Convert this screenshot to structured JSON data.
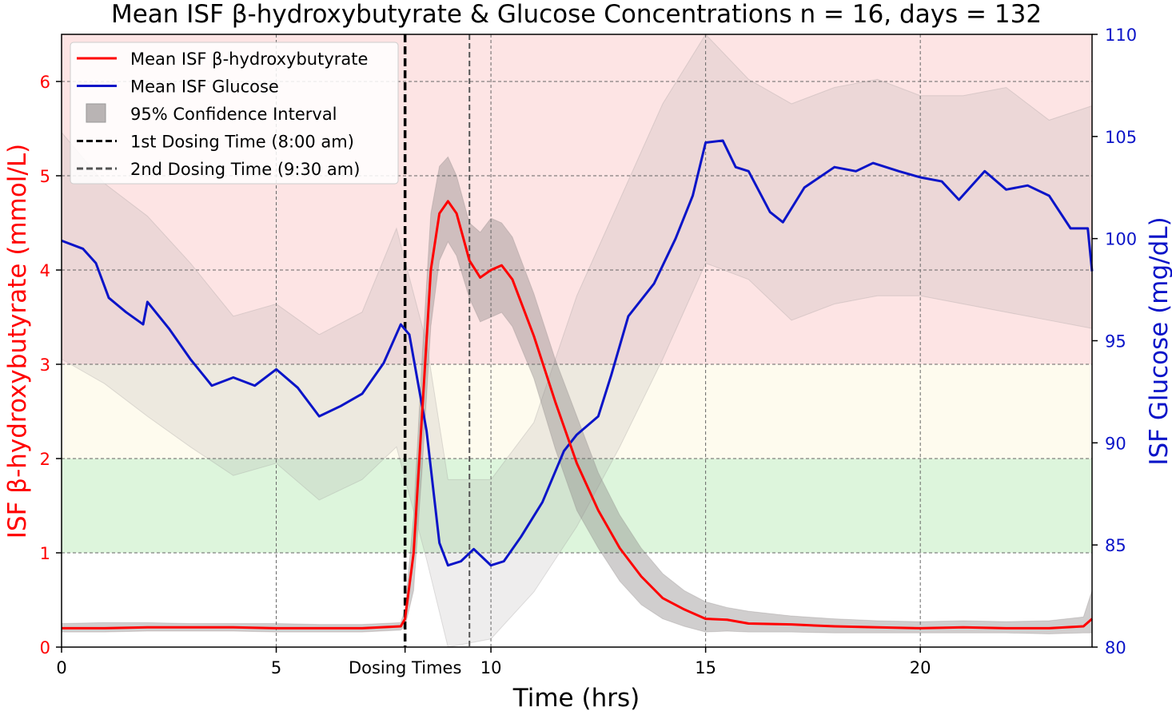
{
  "chart_data": {
    "type": "line",
    "title": "Mean ISF β-hydroxybutyrate & Glucose Concentrations n = 16, days = 132",
    "xlabel": "Time (hrs)",
    "ylabel_left": "ISF β-hydroxybutyrate (mmol/L)",
    "ylabel_right": "ISF Glucose (mg/dL)",
    "xlim": [
      0,
      24
    ],
    "ylim_left": [
      0,
      6.5
    ],
    "ylim_right": [
      80,
      110
    ],
    "x_ticks": [
      0,
      5,
      10,
      15,
      20
    ],
    "x_tick_labels": [
      "0",
      "5",
      "10",
      "15",
      "20"
    ],
    "extra_x_tick": {
      "x": 8,
      "label": "Dosing Times"
    },
    "y_left_ticks": [
      0,
      1,
      2,
      3,
      4,
      5,
      6
    ],
    "y_left_tick_labels": [
      "0",
      "1",
      "2",
      "3",
      "4",
      "5",
      "6"
    ],
    "y_right_ticks": [
      80,
      85,
      90,
      95,
      100,
      105,
      110
    ],
    "y_right_tick_labels": [
      "80",
      "85",
      "90",
      "95",
      "100",
      "105",
      "110"
    ],
    "grid": true,
    "legend_position": "top-left",
    "bands": [
      {
        "from": 3,
        "to": 6.5,
        "color": "#fde4e4"
      },
      {
        "from": 2,
        "to": 3,
        "color": "#fefbee"
      },
      {
        "from": 1,
        "to": 2,
        "color": "#ddf5dc"
      }
    ],
    "dosing_lines": [
      {
        "x": 8,
        "label": "1st Dosing Time (8:00 am)",
        "color": "#000000"
      },
      {
        "x": 9.5,
        "label": "2nd Dosing Time (9:30 am)",
        "color": "#555555"
      }
    ],
    "series": [
      {
        "name": "Mean ISF β-hydroxybutyrate",
        "axis": "left",
        "color": "#ff0000",
        "x": [
          0,
          1,
          2,
          3,
          4,
          5,
          6,
          7,
          7.9,
          8.0,
          8.2,
          8.4,
          8.6,
          8.8,
          9.0,
          9.2,
          9.5,
          9.75,
          10.0,
          10.25,
          10.5,
          11,
          11.5,
          12,
          12.5,
          13,
          13.5,
          14,
          14.5,
          15,
          15.5,
          16,
          17,
          18,
          19,
          20,
          21,
          22,
          23,
          23.8,
          24
        ],
        "y": [
          0.2,
          0.2,
          0.21,
          0.21,
          0.21,
          0.2,
          0.2,
          0.2,
          0.22,
          0.3,
          1.0,
          2.5,
          4.0,
          4.6,
          4.73,
          4.6,
          4.1,
          3.92,
          4.0,
          4.05,
          3.9,
          3.3,
          2.6,
          1.95,
          1.45,
          1.05,
          0.75,
          0.52,
          0.4,
          0.3,
          0.29,
          0.25,
          0.24,
          0.22,
          0.21,
          0.2,
          0.21,
          0.2,
          0.2,
          0.22,
          0.3
        ],
        "ci_upper": [
          0.25,
          0.26,
          0.26,
          0.25,
          0.25,
          0.25,
          0.24,
          0.24,
          0.26,
          0.4,
          1.4,
          3.1,
          4.6,
          5.1,
          5.2,
          5.0,
          4.5,
          4.4,
          4.55,
          4.5,
          4.35,
          3.75,
          3.05,
          2.45,
          1.85,
          1.4,
          1.05,
          0.78,
          0.6,
          0.48,
          0.42,
          0.38,
          0.33,
          0.3,
          0.28,
          0.27,
          0.28,
          0.27,
          0.28,
          0.32,
          0.6
        ],
        "ci_lower": [
          0.16,
          0.16,
          0.17,
          0.17,
          0.17,
          0.16,
          0.16,
          0.16,
          0.18,
          0.22,
          0.6,
          1.9,
          3.4,
          4.1,
          4.3,
          4.15,
          3.7,
          3.45,
          3.5,
          3.55,
          3.4,
          2.85,
          2.1,
          1.45,
          1.05,
          0.7,
          0.45,
          0.3,
          0.22,
          0.16,
          0.17,
          0.16,
          0.16,
          0.15,
          0.15,
          0.15,
          0.15,
          0.15,
          0.14,
          0.15,
          0.15
        ]
      },
      {
        "name": "Mean ISF Glucose",
        "axis": "right",
        "color": "#0a14c8",
        "x": [
          0,
          0.5,
          0.8,
          1.1,
          1.5,
          1.9,
          2.0,
          2.5,
          3,
          3.5,
          4,
          4.5,
          5,
          5.5,
          6,
          6.5,
          7,
          7.5,
          7.9,
          8.1,
          8.5,
          8.8,
          9.0,
          9.3,
          9.6,
          10,
          10.3,
          10.7,
          11.2,
          11.7,
          12,
          12.5,
          12.8,
          13.2,
          13.8,
          14.3,
          14.7,
          15,
          15.4,
          15.7,
          16,
          16.5,
          16.8,
          17.3,
          18,
          18.5,
          18.9,
          19.5,
          20,
          20.5,
          20.9,
          21.5,
          22,
          22.5,
          23,
          23.5,
          23.9,
          24
        ],
        "y": [
          99.9,
          99.5,
          98.8,
          97.1,
          96.4,
          95.8,
          96.9,
          95.6,
          94.1,
          92.8,
          93.2,
          92.8,
          93.6,
          92.7,
          91.3,
          91.8,
          92.4,
          93.9,
          95.8,
          95.3,
          90.6,
          85.1,
          84.0,
          84.2,
          84.8,
          84.0,
          84.2,
          85.4,
          87.1,
          89.6,
          90.4,
          91.3,
          93.3,
          96.2,
          97.8,
          100.0,
          102.1,
          104.7,
          104.8,
          103.5,
          103.3,
          101.3,
          100.8,
          102.5,
          103.5,
          103.3,
          103.7,
          103.3,
          103.0,
          102.8,
          101.9,
          103.3,
          102.4,
          102.6,
          102.1,
          100.5,
          100.5,
          98.4
        ],
        "ci_x": [
          0,
          1,
          2,
          3,
          4,
          5,
          6,
          7,
          7.8,
          8.5,
          9,
          10,
          11,
          12,
          13,
          14,
          15,
          16,
          17,
          18,
          19,
          20,
          21,
          22,
          23,
          24
        ],
        "ci_upper": [
          105.2,
          102.7,
          101.1,
          98.8,
          96.2,
          96.8,
          95.3,
          96.4,
          100.5,
          94.9,
          88.2,
          88.2,
          91.0,
          97.2,
          101.9,
          106.6,
          110,
          107.8,
          106.6,
          107.4,
          107.8,
          107.0,
          107.0,
          107.4,
          105.8,
          106.5
        ],
        "ci_lower": [
          94.1,
          92.9,
          91.3,
          89.8,
          88.4,
          89.0,
          87.2,
          88.2,
          89.8,
          84.3,
          80.0,
          80.4,
          82.7,
          85.9,
          89.8,
          94.1,
          98.8,
          98.0,
          96.0,
          96.8,
          97.2,
          97.2,
          96.8,
          96.4,
          96.0,
          95.6
        ]
      }
    ],
    "legend": [
      {
        "label": "Mean ISF β-hydroxybutyrate",
        "kind": "line",
        "color": "#ff0000"
      },
      {
        "label": "Mean ISF Glucose",
        "kind": "line",
        "color": "#0a14c8"
      },
      {
        "label": "95% Confidence Interval",
        "kind": "patch",
        "color": "#b9b4b4"
      },
      {
        "label": "1st Dosing Time (8:00 am)",
        "kind": "dash",
        "color": "#000000"
      },
      {
        "label": "2nd Dosing Time (9:30 am)",
        "kind": "dash",
        "color": "#555555"
      }
    ]
  }
}
